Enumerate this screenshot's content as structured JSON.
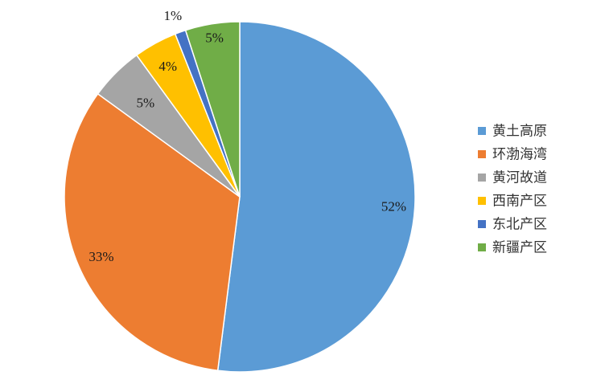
{
  "chart_data": {
    "type": "pie",
    "title": "",
    "legend_position": "right",
    "start_angle_deg": 0,
    "direction": "clockwise",
    "slices": [
      {
        "name": "黄土高原",
        "value": 52,
        "label": "52%",
        "color": "#5B9BD5"
      },
      {
        "name": "环渤海湾",
        "value": 33,
        "label": "33%",
        "color": "#ED7D31"
      },
      {
        "name": "黄河故道",
        "value": 5,
        "label": "5%",
        "color": "#A5A5A5"
      },
      {
        "name": "西南产区",
        "value": 4,
        "label": "4%",
        "color": "#FFC000"
      },
      {
        "name": "东北产区",
        "value": 1,
        "label": "1%",
        "color": "#4472C4"
      },
      {
        "name": "新疆产区",
        "value": 5,
        "label": "5%",
        "color": "#70AD47"
      }
    ]
  }
}
